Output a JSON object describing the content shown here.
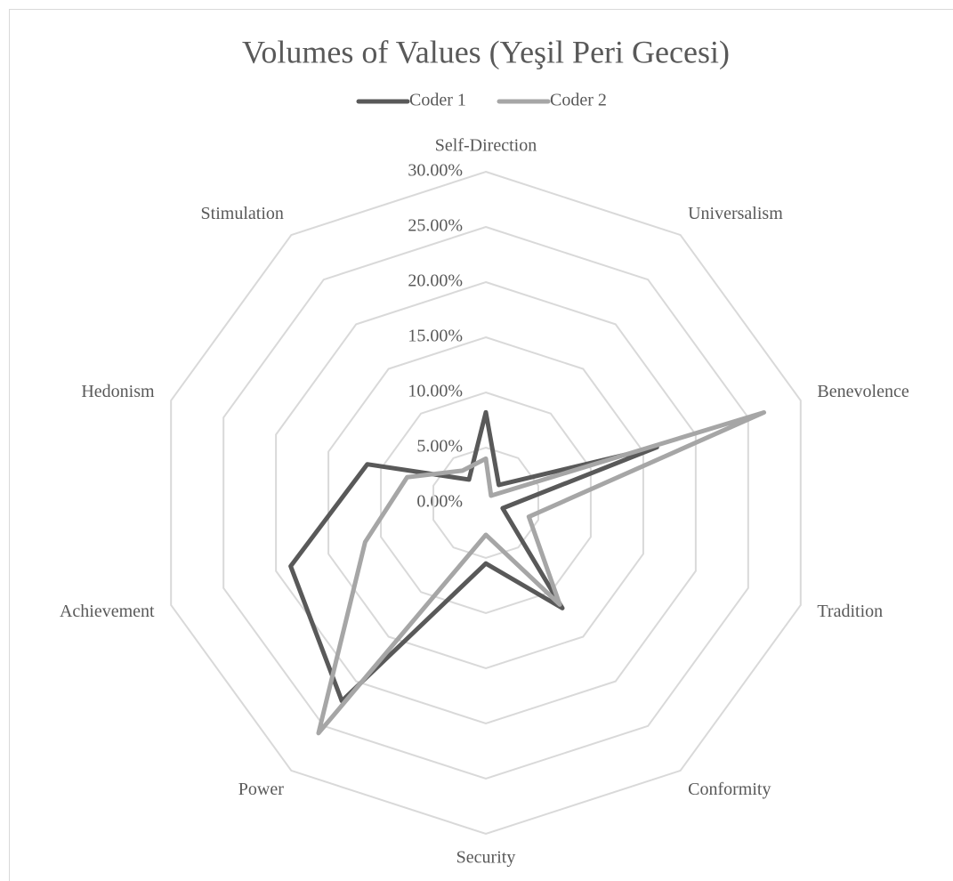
{
  "chart_data": {
    "type": "radar",
    "title": "Volumes of Values (Yeşil Peri Gecesi)",
    "categories": [
      "Self-Direction",
      "Universalism",
      "Benevolence",
      "Tradition",
      "Conformity",
      "Security",
      "Power",
      "Achievement",
      "Hedonism",
      "Stimulation"
    ],
    "series": [
      {
        "name": "Coder 1",
        "color": "#595959",
        "values": [
          8.2,
          2.0,
          16.3,
          1.6,
          11.8,
          5.5,
          22.2,
          18.6,
          11.3,
          2.6
        ]
      },
      {
        "name": "Coder 2",
        "color": "#a6a6a6",
        "values": [
          4.0,
          0.8,
          26.5,
          4.1,
          11.4,
          2.9,
          25.8,
          11.5,
          7.5,
          3.6
        ]
      }
    ],
    "ylim": [
      0,
      30
    ],
    "yticks": [
      {
        "value": 0,
        "label": "0.00%"
      },
      {
        "value": 5,
        "label": "5.00%"
      },
      {
        "value": 10,
        "label": "10.00%"
      },
      {
        "value": 15,
        "label": "15.00%"
      },
      {
        "value": 20,
        "label": "20.00%"
      },
      {
        "value": 25,
        "label": "25.00%"
      },
      {
        "value": 30,
        "label": "30.00%"
      }
    ],
    "grid": true,
    "legend": "top"
  }
}
